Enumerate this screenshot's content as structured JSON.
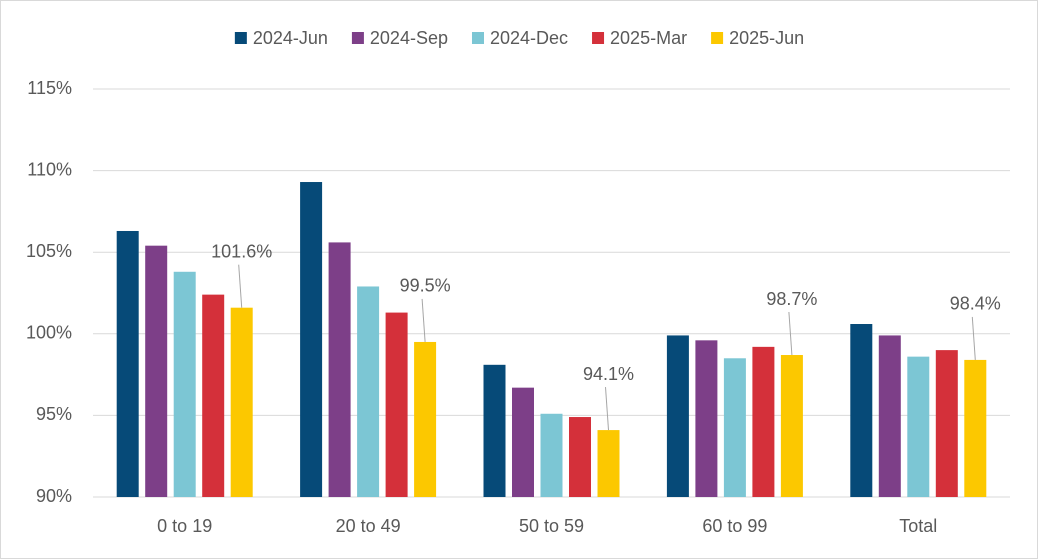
{
  "chart_data": {
    "type": "bar",
    "categories": [
      "0 to 19",
      "20 to 49",
      "50 to 59",
      "60 to 99",
      "Total"
    ],
    "series": [
      {
        "name": "2024-Jun",
        "color": "#064a78",
        "values": [
          106.3,
          109.3,
          98.1,
          99.9,
          100.6
        ]
      },
      {
        "name": "2024-Sep",
        "color": "#7d3f88",
        "values": [
          105.4,
          105.6,
          96.7,
          99.6,
          99.9
        ]
      },
      {
        "name": "2024-Dec",
        "color": "#7cc6d4",
        "values": [
          103.8,
          102.9,
          95.1,
          98.5,
          98.6
        ]
      },
      {
        "name": "2025-Mar",
        "color": "#d4303a",
        "values": [
          102.4,
          101.3,
          94.9,
          99.2,
          99.0
        ]
      },
      {
        "name": "2025-Jun",
        "color": "#fcc800",
        "values": [
          101.6,
          99.5,
          94.1,
          98.7,
          98.4
        ],
        "value_labels": [
          "101.6%",
          "99.5%",
          "94.1%",
          "98.7%",
          "98.4%"
        ]
      }
    ],
    "ylim": [
      90,
      115
    ],
    "yticks": [
      {
        "value": 90,
        "label": "90%"
      },
      {
        "value": 95,
        "label": "95%"
      },
      {
        "value": 100,
        "label": "100%"
      },
      {
        "value": 105,
        "label": "105%"
      },
      {
        "value": 110,
        "label": "110%"
      },
      {
        "value": 115,
        "label": "115%"
      }
    ],
    "grid": true,
    "legend": "top"
  }
}
